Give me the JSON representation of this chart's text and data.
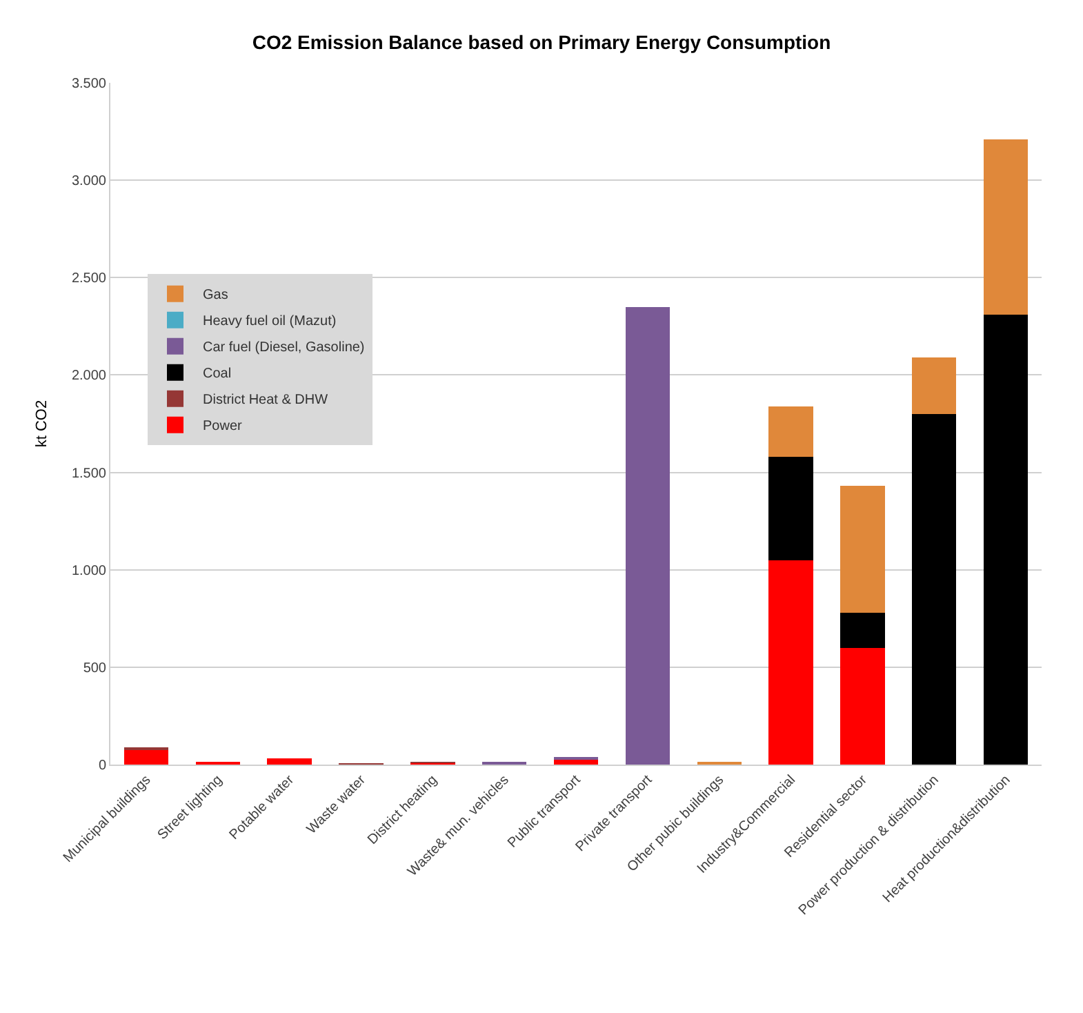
{
  "chart_data": {
    "type": "bar",
    "stacked": true,
    "title": "CO2 Emission Balance based on Primary Energy Consumption",
    "ylabel": "kt CO2",
    "categories": [
      "Municipal buildings",
      "Street lighting",
      "Potable water",
      "Waste water",
      "District heating",
      "Waste& mun. vehicles",
      "Public transport",
      "Private transport",
      "Other pubic buildings",
      "Industry&Commercial",
      "Residential sector",
      "Power production & distribution",
      "Heat production&distribution"
    ],
    "series": [
      {
        "name": "Power",
        "color": "#ff0000",
        "values": [
          75,
          8,
          33,
          null,
          8,
          null,
          25,
          null,
          null,
          1050,
          600,
          null,
          null
        ]
      },
      {
        "name": "District Heat & DHW",
        "color": "#953735",
        "values": [
          15,
          null,
          null,
          5,
          5,
          null,
          null,
          null,
          null,
          null,
          null,
          null,
          null
        ]
      },
      {
        "name": "Coal",
        "color": "#000000",
        "values": [
          null,
          null,
          null,
          null,
          null,
          null,
          null,
          null,
          null,
          530,
          180,
          1800,
          2310
        ]
      },
      {
        "name": "Car fuel (Diesel, Gasoline)",
        "color": "#7a5a96",
        "values": [
          null,
          null,
          null,
          null,
          null,
          15,
          15,
          2350,
          null,
          null,
          null,
          null,
          null
        ]
      },
      {
        "name": "Heavy fuel oil (Mazut)",
        "color": "#4bacc6",
        "values": [
          null,
          null,
          null,
          null,
          null,
          null,
          null,
          null,
          null,
          null,
          null,
          null,
          null
        ]
      },
      {
        "name": "Gas",
        "color": "#e0883a",
        "values": [
          null,
          null,
          null,
          null,
          null,
          null,
          null,
          null,
          15,
          260,
          650,
          290,
          900
        ]
      }
    ],
    "ylim": [
      0,
      3500
    ],
    "yticks": [
      0,
      {
        "value": 500,
        "label": "500"
      },
      {
        "value": 1000,
        "label": "1.000"
      },
      {
        "value": 1500,
        "label": "1.500"
      },
      {
        "value": 2000,
        "label": "2.000"
      },
      {
        "value": 2500,
        "label": "2.500"
      },
      {
        "value": 3000,
        "label": "3.000"
      },
      {
        "value": 3500,
        "label": "3.500"
      }
    ],
    "grid": "y",
    "legend": "top left"
  }
}
